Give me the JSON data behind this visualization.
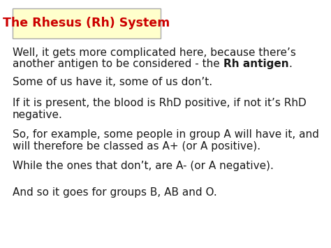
{
  "title": "The Rhesus (Rh) System",
  "title_color": "#cc0000",
  "title_box_bg": "#ffffcc",
  "title_box_edge": "#aaaaaa",
  "background_color": "#ffffff",
  "paragraphs": [
    {
      "parts": [
        {
          "text": "Well, it gets more complicated here, because there’s\nanother antigen to be considered - the ",
          "bold": false
        },
        {
          "text": "Rh antigen",
          "bold": true
        },
        {
          "text": ".",
          "bold": false
        }
      ]
    },
    {
      "parts": [
        {
          "text": "Some of us have it, some of us don’t.",
          "bold": false
        }
      ]
    },
    {
      "parts": [
        {
          "text": "If it is present, the blood is RhD positive, if not it’s RhD\nnegative.",
          "bold": false
        }
      ]
    },
    {
      "parts": [
        {
          "text": "So, for example, some people in group A will have it, and\nwill therefore be classed as A+ (or A positive).",
          "bold": false
        }
      ]
    },
    {
      "parts": [
        {
          "text": "While the ones that don’t, are A- (or A negative).",
          "bold": false
        }
      ]
    },
    {
      "parts": [
        {
          "text": "And so it goes for groups B, AB and O.",
          "bold": false
        }
      ]
    }
  ],
  "text_color": "#1a1a1a",
  "font_size": 11,
  "title_font_size": 12.5,
  "fig_width": 4.74,
  "fig_height": 3.55,
  "dpi": 100
}
